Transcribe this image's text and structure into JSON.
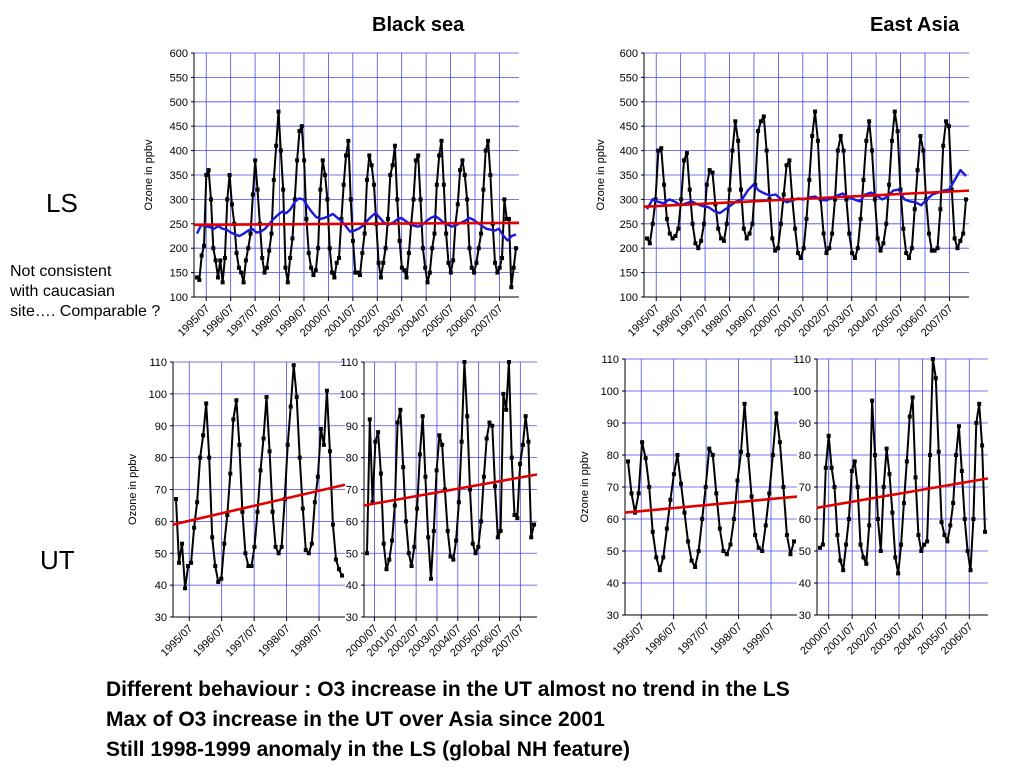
{
  "titles": {
    "black_sea": "Black sea",
    "east_asia": "East Asia"
  },
  "row_labels": {
    "ls": "LS",
    "ut": "UT"
  },
  "note_lines": [
    "Not consistent",
    "with caucasian",
    "site…. Comparable ?"
  ],
  "summary_lines": [
    "Different behaviour : O3 increase in the UT almost no trend in the LS",
    "Max of O3 increase in the UT over Asia since 2001",
    "Still 1998-1999 anomaly in the LS (global NH feature)"
  ],
  "colors": {
    "series": "#000000",
    "trend": "#e00000",
    "smooth": "#1a1adc",
    "grid": "#4a4ae6"
  },
  "chart_data": [
    {
      "id": "ls-black-sea",
      "type": "line",
      "region": "Black sea",
      "layer": "LS",
      "ylabel": "Ozone in ppbv",
      "ylim": [
        100,
        600
      ],
      "y_step": 50,
      "grid": true,
      "x_ticks": [
        "1995/07",
        "1996/07",
        "1997/07",
        "1998/07",
        "1999/07",
        "2000/07",
        "2001/07",
        "2002/07",
        "2003/07",
        "2004/07",
        "2005/07",
        "2006/07",
        "2007/07"
      ],
      "series": [
        {
          "values": [
            140,
            135,
            185,
            205,
            350,
            360,
            300,
            200,
            175,
            140,
            175,
            130,
            180,
            300,
            350,
            290,
            250,
            190,
            160,
            150,
            130,
            175,
            200,
            230,
            310,
            380,
            320,
            250,
            180,
            150,
            160,
            195,
            230,
            340,
            410,
            480,
            400,
            320,
            160,
            130,
            180,
            220,
            300,
            380,
            440,
            450,
            380,
            260,
            190,
            160,
            145,
            155,
            200,
            320,
            380,
            350,
            300,
            200,
            150,
            140,
            170,
            180,
            260,
            330,
            390,
            420,
            300,
            215,
            150,
            150,
            145,
            190,
            230,
            340,
            390,
            370,
            330,
            250,
            170,
            140,
            170,
            200,
            260,
            350,
            370,
            410,
            300,
            215,
            160,
            155,
            140,
            190,
            250,
            300,
            380,
            390,
            300,
            200,
            160,
            130,
            150,
            200,
            230,
            330,
            390,
            420,
            330,
            230,
            170,
            150,
            175,
            250,
            290,
            360,
            380,
            350,
            300,
            200,
            160,
            150,
            170,
            200,
            230,
            320,
            400,
            420,
            350,
            250,
            170,
            150,
            160,
            180,
            300,
            260,
            260,
            120,
            160,
            200
          ]
        },
        {
          "style": "smooth",
          "values": [
            230,
            248,
            245,
            243,
            240,
            245,
            240,
            238,
            232,
            228,
            225,
            230,
            236,
            240,
            232,
            234,
            240,
            250,
            260,
            268,
            275,
            272,
            280,
            295,
            302,
            300,
            286,
            274,
            264,
            260,
            262,
            266,
            270,
            262,
            256,
            245,
            234,
            236,
            240,
            246,
            256,
            265,
            272,
            262,
            252,
            248,
            252,
            258,
            262,
            256,
            250,
            246,
            244,
            248,
            256,
            262,
            266,
            260,
            252,
            248,
            244,
            248,
            252,
            256,
            262,
            258,
            252,
            246,
            240,
            238,
            236,
            240,
            226,
            216,
            225,
            228
          ]
        }
      ],
      "trend": [
        248,
        252
      ]
    },
    {
      "id": "ls-east-asia",
      "type": "line",
      "region": "East Asia",
      "layer": "LS",
      "ylabel": "Ozone in ppbv",
      "ylim": [
        100,
        600
      ],
      "y_step": 50,
      "grid": true,
      "x_ticks": [
        "1995/07",
        "1996/07",
        "1997/07",
        "1998/07",
        "1999/07",
        "2000/07",
        "2001/07",
        "2002/07",
        "2003/07",
        "2004/07",
        "2005/07",
        "2006/07",
        "2007/07"
      ],
      "series": [
        {
          "values": [
            220,
            210,
            250,
            300,
            400,
            405,
            330,
            260,
            230,
            220,
            225,
            240,
            300,
            380,
            395,
            320,
            250,
            210,
            200,
            215,
            250,
            330,
            360,
            355,
            290,
            240,
            220,
            215,
            250,
            320,
            400,
            460,
            420,
            320,
            240,
            220,
            230,
            250,
            330,
            440,
            460,
            470,
            400,
            300,
            220,
            195,
            200,
            250,
            310,
            370,
            380,
            300,
            240,
            190,
            180,
            200,
            260,
            340,
            430,
            480,
            420,
            300,
            230,
            190,
            200,
            230,
            300,
            400,
            430,
            400,
            300,
            230,
            190,
            180,
            200,
            260,
            340,
            420,
            460,
            400,
            300,
            220,
            195,
            210,
            250,
            330,
            420,
            480,
            440,
            320,
            240,
            190,
            180,
            200,
            280,
            360,
            430,
            400,
            300,
            230,
            195,
            195,
            200,
            280,
            410,
            460,
            450,
            320,
            220,
            200,
            215,
            230,
            300
          ]
        },
        {
          "style": "smooth",
          "values": [
            280,
            300,
            295,
            292,
            300,
            295,
            288,
            292,
            296,
            290,
            286,
            284,
            276,
            272,
            280,
            288,
            296,
            300,
            318,
            330,
            318,
            312,
            308,
            310,
            300,
            294,
            298,
            302,
            300,
            304,
            306,
            300,
            298,
            302,
            308,
            312,
            304,
            300,
            296,
            310,
            314,
            308,
            300,
            306,
            318,
            320,
            300,
            296,
            294,
            288,
            300,
            310,
            314,
            318,
            320,
            340,
            360,
            348
          ]
        }
      ],
      "trend": [
        285,
        318
      ]
    },
    {
      "id": "ut-black-sea-1995",
      "type": "line",
      "region": "Black sea",
      "layer": "UT",
      "ylabel": "Ozone in ppbv",
      "ylim": [
        30,
        110
      ],
      "y_step": 10,
      "grid": true,
      "x_ticks": [
        "1995/07",
        "1996/07",
        "1997/07",
        "1998/07",
        "1999/07"
      ],
      "series": [
        {
          "values": [
            67,
            47,
            53,
            39,
            46,
            47,
            58,
            66,
            80,
            87,
            97,
            80,
            55,
            46,
            41,
            42,
            53,
            62,
            75,
            92,
            98,
            84,
            63,
            50,
            46,
            46,
            52,
            63,
            76,
            86,
            99,
            82,
            63,
            52,
            50,
            52,
            67,
            84,
            96,
            109,
            99,
            80,
            64,
            51,
            50,
            53,
            66,
            74,
            89,
            84,
            101,
            82,
            59,
            48,
            45,
            43
          ]
        }
      ],
      "trend": [
        59,
        71.5
      ]
    },
    {
      "id": "ut-black-sea-2000",
      "type": "line",
      "region": "Black sea",
      "layer": "UT",
      "ylabel": "",
      "ylim": [
        30,
        110
      ],
      "y_step": 10,
      "grid": true,
      "x_ticks": [
        "2000/07",
        "2001/07",
        "2002/07",
        "2003/07",
        "2004/07",
        "2005/07",
        "2006/07",
        "2007/07"
      ],
      "series": [
        {
          "values": [
            50,
            92,
            66,
            85,
            88,
            75,
            53,
            45,
            48,
            54,
            65,
            91,
            95,
            77,
            60,
            50,
            46,
            52,
            64,
            81,
            93,
            74,
            55,
            42,
            57,
            76,
            87,
            84,
            70,
            57,
            49,
            48,
            54,
            66,
            85,
            110,
            93,
            70,
            53,
            50,
            52,
            60,
            74,
            86,
            91,
            90,
            71,
            55,
            57,
            100,
            95,
            110,
            80,
            62,
            61,
            78,
            84,
            93,
            85,
            55,
            59
          ]
        }
      ],
      "trend": [
        65,
        74.7
      ]
    },
    {
      "id": "ut-east-asia-1995",
      "type": "line",
      "region": "East Asia",
      "layer": "UT",
      "ylabel": "Ozone in ppbv",
      "ylim": [
        30,
        110
      ],
      "y_step": 10,
      "grid": true,
      "x_ticks": [
        "1995/07",
        "1996/07",
        "1997/07",
        "1998/07",
        "1999/07"
      ],
      "series": [
        {
          "values": [
            78,
            68,
            62,
            68,
            84,
            79,
            70,
            56,
            48,
            44,
            48,
            57,
            66,
            74,
            80,
            71,
            62,
            53,
            47,
            45,
            50,
            60,
            70,
            82,
            80,
            68,
            57,
            50,
            49,
            52,
            60,
            72,
            81,
            96,
            80,
            67,
            55,
            51,
            50,
            58,
            68,
            80,
            93,
            84,
            70,
            55,
            49,
            53
          ]
        }
      ],
      "trend": [
        62,
        67
      ]
    },
    {
      "id": "ut-east-asia-2000",
      "type": "line",
      "region": "East Asia",
      "layer": "UT",
      "ylabel": "",
      "ylim": [
        30,
        110
      ],
      "y_step": 10,
      "grid": true,
      "x_ticks": [
        "2000/07",
        "2001/07",
        "2002/07",
        "2003/07",
        "2004/07",
        "2005/07",
        "2006/07"
      ],
      "series": [
        {
          "values": [
            51,
            52,
            76,
            86,
            76,
            70,
            55,
            47,
            44,
            52,
            60,
            75,
            78,
            70,
            52,
            48,
            46,
            58,
            97,
            80,
            60,
            50,
            70,
            82,
            74,
            62,
            48,
            43,
            52,
            65,
            78,
            92,
            98,
            73,
            55,
            50,
            52,
            53,
            80,
            110,
            104,
            81,
            59,
            55,
            53,
            58,
            65,
            80,
            89,
            75,
            60,
            50,
            44,
            60,
            90,
            96,
            83,
            56
          ]
        }
      ],
      "trend": [
        63.5,
        72.7
      ]
    }
  ]
}
